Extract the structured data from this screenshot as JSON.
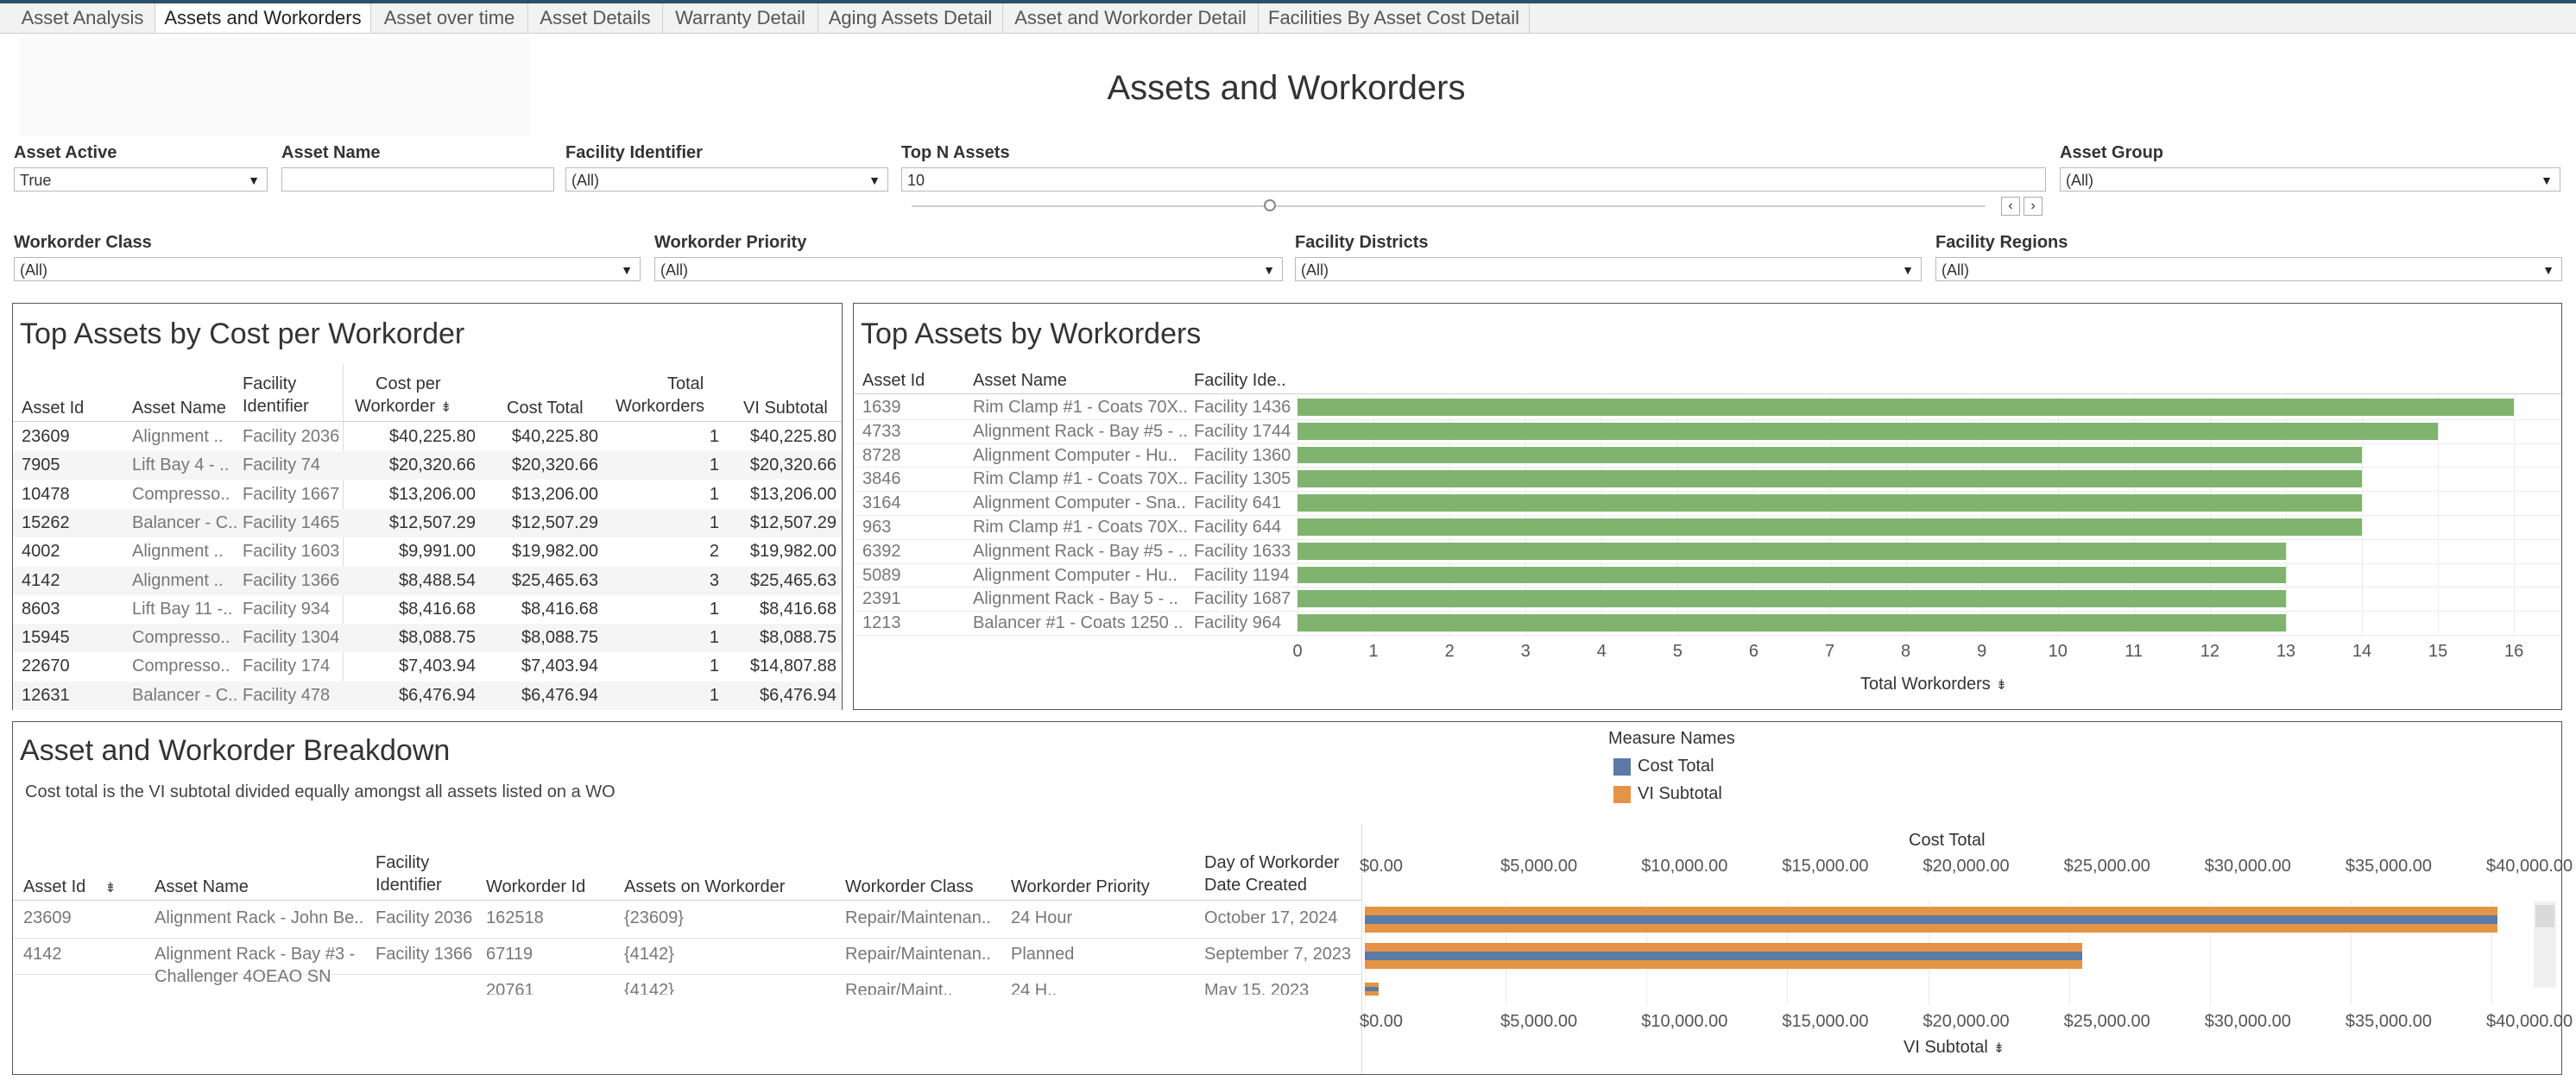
{
  "tabs": [
    "Asset Analysis",
    "Assets and Workorders",
    "Asset over time",
    "Asset Details",
    "Warranty Detail",
    "Aging Assets Detail",
    "Asset and Workorder Detail",
    "Facilities By Asset Cost Detail"
  ],
  "active_tab": "Assets and Workorders",
  "dashboard_title": "Assets and Workorders",
  "filters": {
    "asset_active": {
      "label": "Asset Active",
      "value": "True"
    },
    "asset_name": {
      "label": "Asset Name",
      "value": ""
    },
    "facility_identifier": {
      "label": "Facility Identifier",
      "value": "(All)"
    },
    "top_n_assets": {
      "label": "Top N Assets",
      "value": "10"
    },
    "asset_group": {
      "label": "Asset Group",
      "value": "(All)"
    },
    "workorder_class": {
      "label": "Workorder Class",
      "value": "(All)"
    },
    "workorder_priority": {
      "label": "Workorder Priority",
      "value": "(All)"
    },
    "facility_districts": {
      "label": "Facility Districts",
      "value": "(All)"
    },
    "facility_regions": {
      "label": "Facility Regions",
      "value": "(All)"
    }
  },
  "cost_table": {
    "title": "Top Assets by Cost per Workorder",
    "headers": {
      "asset_id": "Asset Id",
      "asset_name": "Asset Name",
      "facility_1": "Facility",
      "facility_2": "Identifier",
      "cpw_1": "Cost per",
      "cpw_2": "Workorder",
      "cost_total": "Cost Total",
      "tw_1": "Total",
      "tw_2": "Workorders",
      "vi": "VI Subtotal"
    },
    "rows": [
      [
        "23609",
        "Alignment ..",
        "Facility 2036",
        "$40,225.80",
        "$40,225.80",
        "1",
        "$40,225.80"
      ],
      [
        "7905",
        "Lift Bay 4 - ..",
        "Facility 74",
        "$20,320.66",
        "$20,320.66",
        "1",
        "$20,320.66"
      ],
      [
        "10478",
        "Compresso..",
        "Facility 1667",
        "$13,206.00",
        "$13,206.00",
        "1",
        "$13,206.00"
      ],
      [
        "15262",
        "Balancer - C..",
        "Facility 1465",
        "$12,507.29",
        "$12,507.29",
        "1",
        "$12,507.29"
      ],
      [
        "4002",
        "Alignment ..",
        "Facility 1603",
        "$9,991.00",
        "$19,982.00",
        "2",
        "$19,982.00"
      ],
      [
        "4142",
        "Alignment ..",
        "Facility 1366",
        "$8,488.54",
        "$25,465.63",
        "3",
        "$25,465.63"
      ],
      [
        "8603",
        "Lift Bay 11 -..",
        "Facility 934",
        "$8,416.68",
        "$8,416.68",
        "1",
        "$8,416.68"
      ],
      [
        "15945",
        "Compresso..",
        "Facility 1304",
        "$8,088.75",
        "$8,088.75",
        "1",
        "$8,088.75"
      ],
      [
        "22670",
        "Compresso..",
        "Facility 174",
        "$7,403.94",
        "$7,403.94",
        "1",
        "$14,807.88"
      ],
      [
        "12631",
        "Balancer - C..",
        "Facility 478",
        "$6,476.94",
        "$6,476.94",
        "1",
        "$6,476.94"
      ]
    ]
  },
  "workorder_chart": {
    "title": "Top Assets by Workorders",
    "headers": {
      "asset_id": "Asset Id",
      "asset_name": "Asset Name",
      "facility": "Facility Ide.."
    },
    "axis_title": "Total Workorders",
    "ticks": [
      "0",
      "1",
      "2",
      "3",
      "4",
      "5",
      "6",
      "7",
      "8",
      "9",
      "10",
      "11",
      "12",
      "13",
      "14",
      "15",
      "16"
    ],
    "bar_color": "#80b46e"
  },
  "chart_data": [
    {
      "type": "bar",
      "orientation": "horizontal",
      "title": "Top Assets by Workorders",
      "xlabel": "Total Workorders",
      "xlim": [
        0,
        16.6
      ],
      "rows": [
        {
          "asset_id": "1639",
          "asset_name": "Rim Clamp #1 - Coats 70X..",
          "facility": "Facility 1436",
          "value": 16
        },
        {
          "asset_id": "4733",
          "asset_name": "Alignment Rack - Bay #5 - ..",
          "facility": "Facility 1744",
          "value": 15
        },
        {
          "asset_id": "8728",
          "asset_name": "Alignment Computer - Hu..",
          "facility": "Facility 1360",
          "value": 14
        },
        {
          "asset_id": "3846",
          "asset_name": "Rim Clamp #1 - Coats 70X..",
          "facility": "Facility 1305",
          "value": 14
        },
        {
          "asset_id": "3164",
          "asset_name": "Alignment Computer - Sna..",
          "facility": "Facility 641",
          "value": 14
        },
        {
          "asset_id": "963",
          "asset_name": "Rim Clamp #1 - Coats 70X..",
          "facility": "Facility 644",
          "value": 14
        },
        {
          "asset_id": "6392",
          "asset_name": "Alignment Rack - Bay #5 - ..",
          "facility": "Facility 1633",
          "value": 13
        },
        {
          "asset_id": "5089",
          "asset_name": "Alignment Computer - Hu..",
          "facility": "Facility 1194",
          "value": 13
        },
        {
          "asset_id": "2391",
          "asset_name": "Alignment Rack - Bay 5 - ..",
          "facility": "Facility 1687",
          "value": 13
        },
        {
          "asset_id": "1213",
          "asset_name": "Balancer #1 - Coats 1250 ..",
          "facility": "Facility 964",
          "value": 13
        }
      ]
    },
    {
      "type": "bar",
      "orientation": "horizontal",
      "title": "Asset and Workorder Breakdown",
      "top_axis_title": "Cost Total",
      "bottom_axis_title": "VI Subtotal",
      "xlim": [
        0,
        41500
      ],
      "ticks": [
        "$0.00",
        "$5,000.00",
        "$10,000.00",
        "$15,000.00",
        "$20,000.00",
        "$25,000.00",
        "$30,000.00",
        "$35,000.00",
        "$40,000.00"
      ],
      "legend_title": "Measure Names",
      "series": [
        {
          "name": "Cost Total",
          "color": "#5b7aa6",
          "values": [
            40225.8,
            25465.63,
            500
          ]
        },
        {
          "name": "VI Subtotal",
          "color": "#e49444",
          "values": [
            40225.8,
            25465.63,
            500
          ]
        }
      ]
    }
  ],
  "breakdown": {
    "title": "Asset and Workorder Breakdown",
    "subtitle": "Cost total is the  VI subtotal divided equally amongst all assets listed on a WO",
    "headers": {
      "asset_id": "Asset Id",
      "asset_name": "Asset Name",
      "facility_1": "Facility",
      "facility_2": "Identifier",
      "workorder_id": "Workorder Id",
      "assets_on": "Assets on Workorder",
      "wclass": "Workorder Class",
      "wprio": "Workorder Priority",
      "day_1": "Day of Workorder",
      "day_2": "Date Created"
    },
    "rows": [
      {
        "asset_id": "23609",
        "asset_name": "Alignment Rack - John Be..",
        "facility": "Facility 2036",
        "workorder_id": "162518",
        "assets_on": "{23609}",
        "wclass": "Repair/Maintenan..",
        "wprio": "24 Hour",
        "date": "October 17, 2024"
      },
      {
        "asset_id": "4142",
        "asset_name": "Alignment Rack - Bay #3 -",
        "asset_name_2": "Challenger 4OEAO SN",
        "facility": "Facility 1366",
        "workorder_id": "67119",
        "assets_on": "{4142}",
        "wclass": "Repair/Maintenan..",
        "wprio": "Planned",
        "date": "September 7, 2023"
      },
      {
        "asset_id": "",
        "asset_name": "",
        "facility": "",
        "workorder_id": "20761",
        "assets_on": "{4142}",
        "wclass": "Repair/Maint..",
        "wprio": "24 H..",
        "date": "May 15, 2023"
      }
    ]
  }
}
